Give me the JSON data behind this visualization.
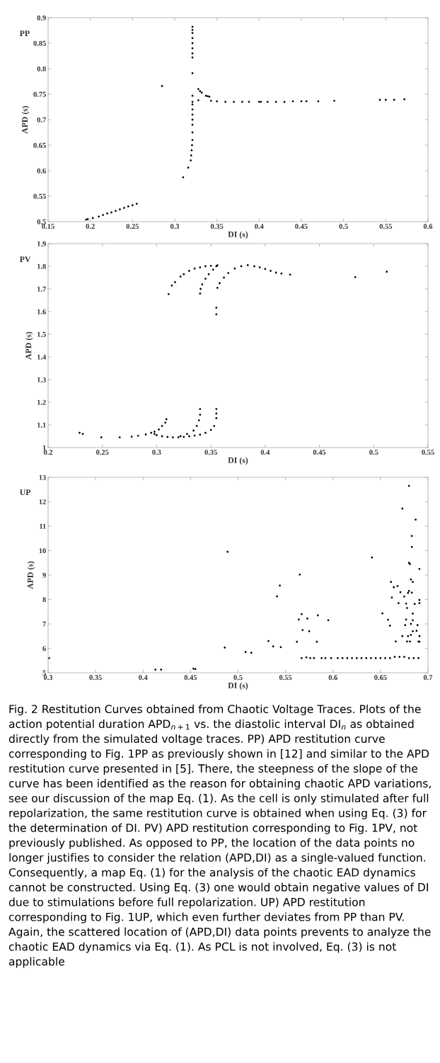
{
  "chart_data": [
    {
      "type": "scatter",
      "title": "PP",
      "xlabel": "DI (s)",
      "ylabel": "APD (s)",
      "marker": "circle",
      "xlim": [
        0.15,
        0.6
      ],
      "xticks": [
        0.15,
        0.2,
        0.25,
        0.3,
        0.35,
        0.4,
        0.45,
        0.5,
        0.55,
        0.6
      ],
      "ylim": [
        0.5,
        0.9
      ],
      "yticks": [
        0.5,
        0.55,
        0.6,
        0.65,
        0.7,
        0.75,
        0.8,
        0.85,
        0.9
      ],
      "series": [
        {
          "color": "#000000",
          "x": [
            0.195,
            0.197,
            0.203,
            0.21,
            0.215,
            0.22,
            0.225,
            0.23,
            0.235,
            0.24,
            0.245,
            0.25,
            0.255,
            0.285,
            0.31,
            0.316,
            0.319,
            0.3195,
            0.32,
            0.3205,
            0.321,
            0.321,
            0.321,
            0.321,
            0.321,
            0.321,
            0.321,
            0.321,
            0.321,
            0.321,
            0.321,
            0.321,
            0.321,
            0.321,
            0.321,
            0.321,
            0.321,
            0.321,
            0.328,
            0.33,
            0.332,
            0.328,
            0.337,
            0.339,
            0.341,
            0.343,
            0.35,
            0.36,
            0.37,
            0.38,
            0.388,
            0.4,
            0.402,
            0.41,
            0.42,
            0.43,
            0.44,
            0.45,
            0.456,
            0.47,
            0.489,
            0.543,
            0.55,
            0.56,
            0.572
          ],
          "values": [
            0.504,
            0.505,
            0.507,
            0.51,
            0.513,
            0.516,
            0.518,
            0.521,
            0.524,
            0.527,
            0.53,
            0.532,
            0.535,
            0.766,
            0.587,
            0.606,
            0.62,
            0.63,
            0.64,
            0.65,
            0.66,
            0.675,
            0.69,
            0.7,
            0.71,
            0.72,
            0.73,
            0.735,
            0.747,
            0.791,
            0.822,
            0.83,
            0.84,
            0.85,
            0.86,
            0.87,
            0.882,
            0.876,
            0.76,
            0.756,
            0.753,
            0.738,
            0.747,
            0.746,
            0.745,
            0.737,
            0.736,
            0.735,
            0.735,
            0.735,
            0.735,
            0.735,
            0.735,
            0.735,
            0.735,
            0.735,
            0.736,
            0.736,
            0.736,
            0.736,
            0.737,
            0.739,
            0.739,
            0.739,
            0.74
          ]
        }
      ]
    },
    {
      "type": "scatter",
      "title": "PV",
      "xlabel": "DI (s)",
      "ylabel": "APD (s)",
      "marker": "circle",
      "xlim": [
        0.2,
        0.55
      ],
      "xticks": [
        0.2,
        0.25,
        0.3,
        0.35,
        0.4,
        0.45,
        0.5,
        0.55
      ],
      "ylim": [
        1,
        1.9
      ],
      "yticks": [
        1,
        1.1,
        1.2,
        1.3,
        1.4,
        1.5,
        1.6,
        1.7,
        1.8,
        1.9
      ],
      "series": [
        {
          "color": "#000000",
          "x": [
            0.311,
            0.314,
            0.317,
            0.322,
            0.325,
            0.33,
            0.335,
            0.34,
            0.345,
            0.35,
            0.356,
            0.34,
            0.3405,
            0.342,
            0.345,
            0.348,
            0.352,
            0.355,
            0.355,
            0.355,
            0.356,
            0.358,
            0.362,
            0.366,
            0.372,
            0.378,
            0.384,
            0.39,
            0.395,
            0.4,
            0.405,
            0.41,
            0.415,
            0.423,
            0.483,
            0.512,
            0.229,
            0.232,
            0.249,
            0.266,
            0.277,
            0.283,
            0.29,
            0.295,
            0.298,
            0.3,
            0.305,
            0.31,
            0.315,
            0.32,
            0.325,
            0.33,
            0.335,
            0.34,
            0.345,
            0.35,
            0.353,
            0.355,
            0.355,
            0.355,
            0.298,
            0.302,
            0.305,
            0.308,
            0.309,
            0.322,
            0.328,
            0.334,
            0.337,
            0.339,
            0.34,
            0.34
          ],
          "values": [
            1.677,
            1.715,
            1.73,
            1.755,
            1.765,
            1.78,
            1.79,
            1.795,
            1.8,
            1.802,
            1.804,
            1.68,
            1.7,
            1.72,
            1.745,
            1.765,
            1.785,
            1.8,
            1.617,
            1.588,
            1.705,
            1.725,
            1.75,
            1.77,
            1.79,
            1.8,
            1.805,
            1.8,
            1.795,
            1.788,
            1.78,
            1.772,
            1.768,
            1.763,
            1.752,
            1.776,
            1.065,
            1.06,
            1.045,
            1.045,
            1.048,
            1.052,
            1.058,
            1.065,
            1.06,
            1.055,
            1.05,
            1.047,
            1.045,
            1.045,
            1.047,
            1.05,
            1.053,
            1.057,
            1.065,
            1.078,
            1.095,
            1.13,
            1.15,
            1.17,
            1.07,
            1.08,
            1.095,
            1.11,
            1.125,
            1.05,
            1.06,
            1.075,
            1.095,
            1.12,
            1.145,
            1.17
          ]
        }
      ]
    },
    {
      "type": "scatter",
      "title": "UP",
      "xlabel": "DI (s)",
      "ylabel": "APD (s)",
      "marker": "circle",
      "xlim": [
        0.3,
        0.7
      ],
      "xticks": [
        0.3,
        0.35,
        0.4,
        0.45,
        0.5,
        0.55,
        0.6,
        0.65,
        0.7
      ],
      "ylim": [
        5,
        13
      ],
      "yticks": [
        5,
        6,
        7,
        8,
        9,
        10,
        11,
        12,
        13
      ],
      "series": [
        {
          "color": "#000000",
          "x": [
            0.301,
            0.413,
            0.419,
            0.453,
            0.455,
            0.486,
            0.489,
            0.508,
            0.514,
            0.532,
            0.537,
            0.541,
            0.544,
            0.545,
            0.562,
            0.564,
            0.565,
            0.567,
            0.568,
            0.573,
            0.575,
            0.583,
            0.584,
            0.595,
            0.641,
            0.652,
            0.658,
            0.66,
            0.661,
            0.662,
            0.664,
            0.666,
            0.668,
            0.669,
            0.671,
            0.673,
            0.673,
            0.675,
            0.676,
            0.677,
            0.677,
            0.678,
            0.678,
            0.679,
            0.679,
            0.68,
            0.68,
            0.68,
            0.681,
            0.681,
            0.682,
            0.682,
            0.682,
            0.683,
            0.683,
            0.683,
            0.684,
            0.684,
            0.684,
            0.684,
            0.686,
            0.687,
            0.688,
            0.689,
            0.69,
            0.691,
            0.691,
            0.691,
            0.691,
            0.691,
            0.567,
            0.572,
            0.576,
            0.58,
            0.588,
            0.592,
            0.598,
            0.605,
            0.61,
            0.615,
            0.62,
            0.625,
            0.63,
            0.635,
            0.64,
            0.645,
            0.65,
            0.655,
            0.66,
            0.665,
            0.67,
            0.675,
            0.68,
            0.685,
            0.69
          ],
          "values": [
            5.6,
            5.13,
            5.13,
            5.17,
            5.15,
            6.03,
            9.95,
            5.85,
            5.82,
            6.3,
            6.08,
            8.13,
            8.57,
            6.05,
            6.27,
            7.18,
            9.02,
            7.4,
            6.75,
            7.22,
            6.7,
            6.27,
            7.35,
            7.15,
            9.72,
            7.43,
            7.17,
            6.93,
            8.72,
            8.08,
            8.5,
            6.28,
            8.55,
            7.85,
            8.3,
            11.72,
            6.5,
            8.12,
            6.95,
            7.83,
            7.18,
            6.28,
            7.65,
            8.27,
            6.5,
            9.5,
            12.65,
            8.35,
            9.45,
            6.28,
            8.82,
            7.0,
            6.55,
            8.28,
            10.6,
            10.15,
            8.72,
            7.42,
            7.15,
            6.7,
            7.82,
            11.27,
            6.72,
            6.95,
            6.28,
            9.25,
            7.98,
            7.85,
            6.5,
            6.27,
            5.6,
            5.63,
            5.6,
            5.6,
            5.6,
            5.6,
            5.6,
            5.6,
            5.6,
            5.6,
            5.6,
            5.6,
            5.6,
            5.6,
            5.6,
            5.6,
            5.6,
            5.6,
            5.6,
            5.65,
            5.65,
            5.65,
            5.6,
            5.6,
            5.6
          ]
        }
      ],
      "annotations": [
        "Fig. 2 Restitution Curves obtained from Chaotic Voltage Traces. Plots of the action potential duration APD$_{n+1}$ vs. the diastolic interval DI$_{n}$ as obtained directly from the simulated voltage traces. PP) APD restitution curve corresponding to Fig. 1PP as previously shown in [12] and similar to the APD restitution curve presented in [5]. There, the steepness of the slope of the curve has been identified as the reason for obtaining chaotic APD variations, see our discussion of the map Eq. (1). As the cell is only stimulated after full repolarization, the same restitution curve is obtained when using Eq. (3) for the determination of DI. PV) APD restitution corresponding to Fig. 1PV, not previously published. As opposed to PP, the location of the data points no longer justifies to consider the relation (APD,DI) as a single-valued function. Consequently, a map Eq. (1) for the analysis of the chaotic EAD dynamics cannot be constructed. Using Eq. (3) one would obtain negative values of DI due to stimulations before full repolarization. UP) APD restitution corresponding to Fig. 1UP, which even further deviates from PP than PV. Again, the scattered location of (APD,DI) data points prevents to analyze the chaotic EAD dynamics via Eq. (1). As PCL is not involved, Eq. (3) is not applicable"
      ]
    }
  ]
}
